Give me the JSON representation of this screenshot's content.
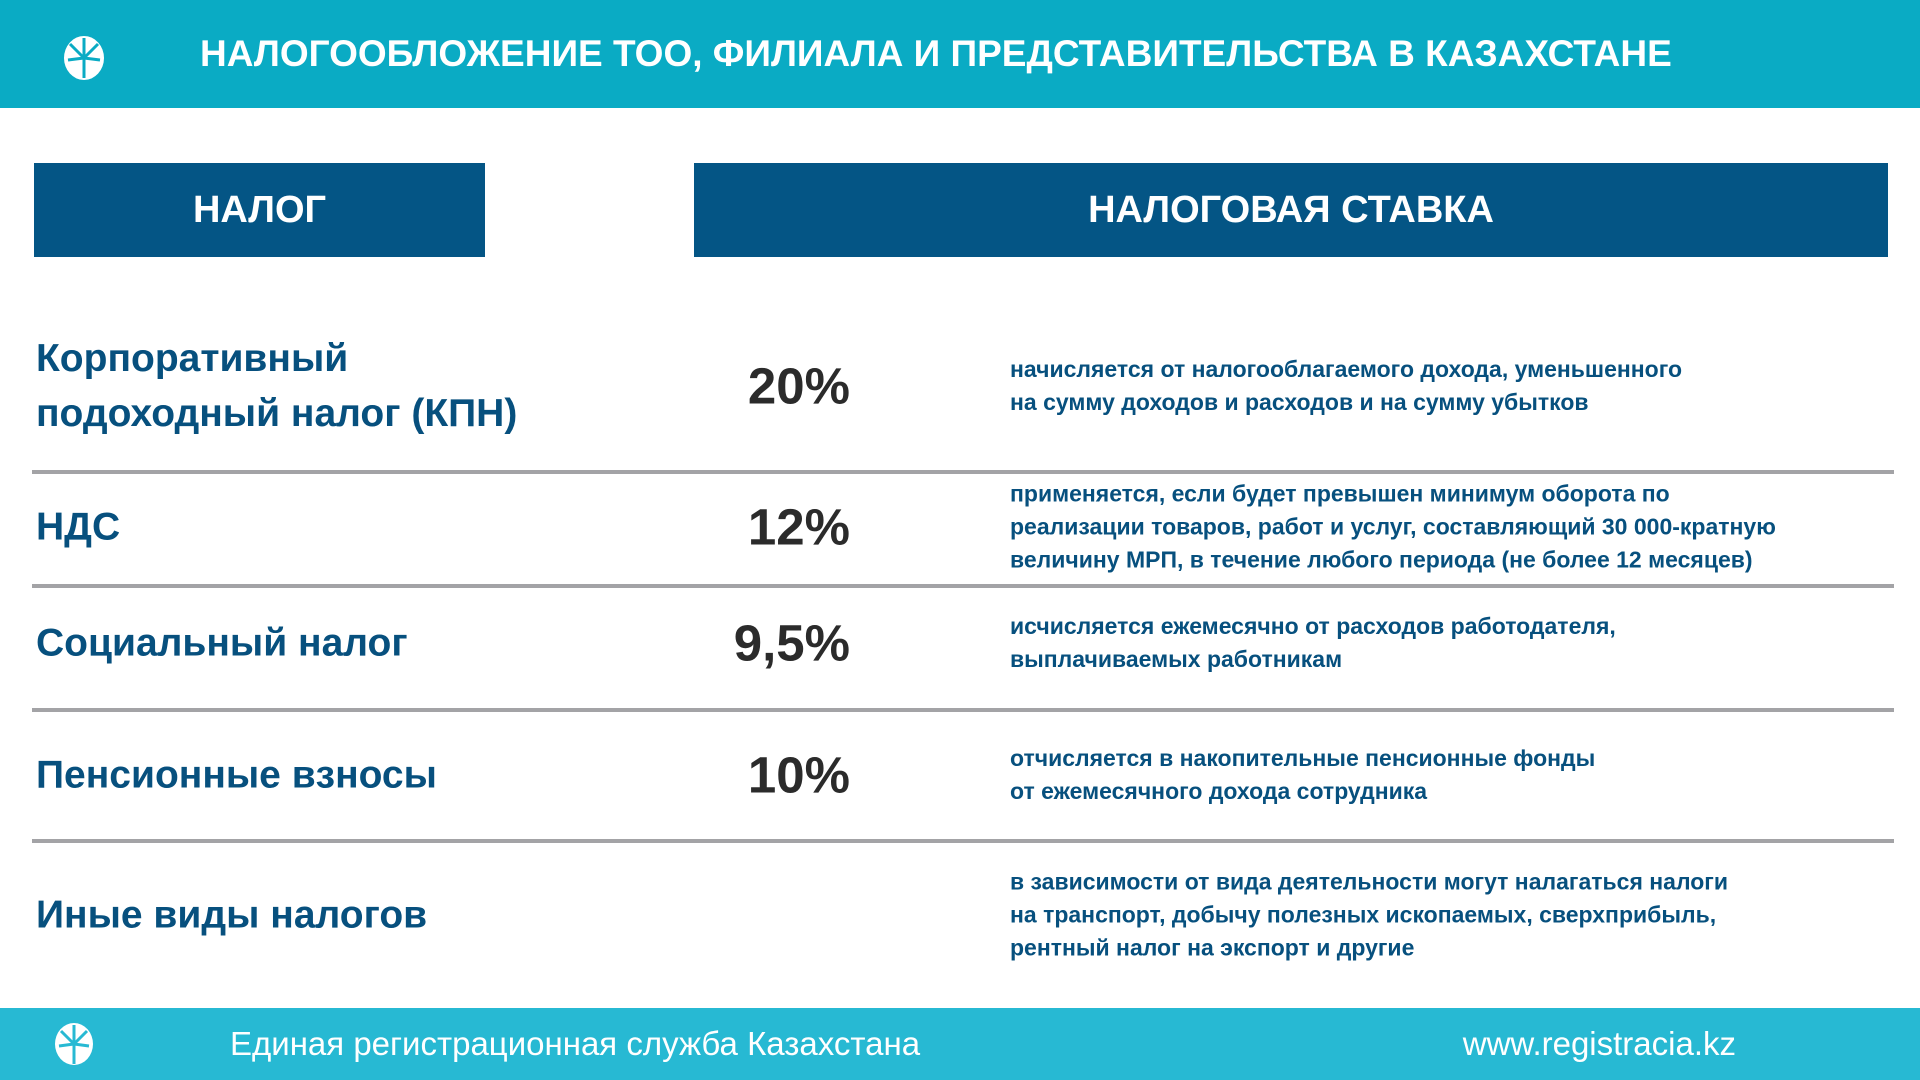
{
  "header": {
    "title": "НАЛОГООБЛОЖЕНИЕ ТОО, ФИЛИАЛА И ПРЕДСТАВИТЕЛЬСТВА В КАЗАХСТАНЕ"
  },
  "columns": [
    "НАЛОГ",
    "НАЛОГОВАЯ СТАВКА"
  ],
  "rows": [
    {
      "name": [
        "Корпоративный",
        "подоходный налог (КПН)"
      ],
      "rate": "20%",
      "description": [
        "начисляется от налогооблагаемого дохода, уменьшенного",
        "на сумму доходов и расходов и на сумму убытков"
      ]
    },
    {
      "name": [
        "НДС"
      ],
      "rate": "12%",
      "description": [
        "применяется, если будет превышен минимум оборота по",
        "реализации товаров, работ и услуг, составляющий 30 000-кратную",
        "величину МРП, в течение любого периода (не более 12 месяцев)"
      ]
    },
    {
      "name": [
        "Социальный налог"
      ],
      "rate": "9,5%",
      "description": [
        "исчисляется ежемесячно от расходов работодателя,",
        "выплачиваемых работникам"
      ]
    },
    {
      "name": [
        "Пенсионные взносы"
      ],
      "rate": "10%",
      "description": [
        "отчисляется в накопительные пенсионные фонды",
        "от ежемесячного дохода сотрудника"
      ]
    },
    {
      "name": [
        "Иные виды налогов"
      ],
      "description": [
        "в зависимости от вида деятельности могут налагаться налоги",
        "на транспорт, добычу полезных ископаемых, сверхприбыль,",
        "рентный налог на экспорт и другие"
      ]
    }
  ],
  "footer": {
    "organization": "Единая регистрационная служба Казахстана",
    "website": "www.registracia.kz"
  }
}
